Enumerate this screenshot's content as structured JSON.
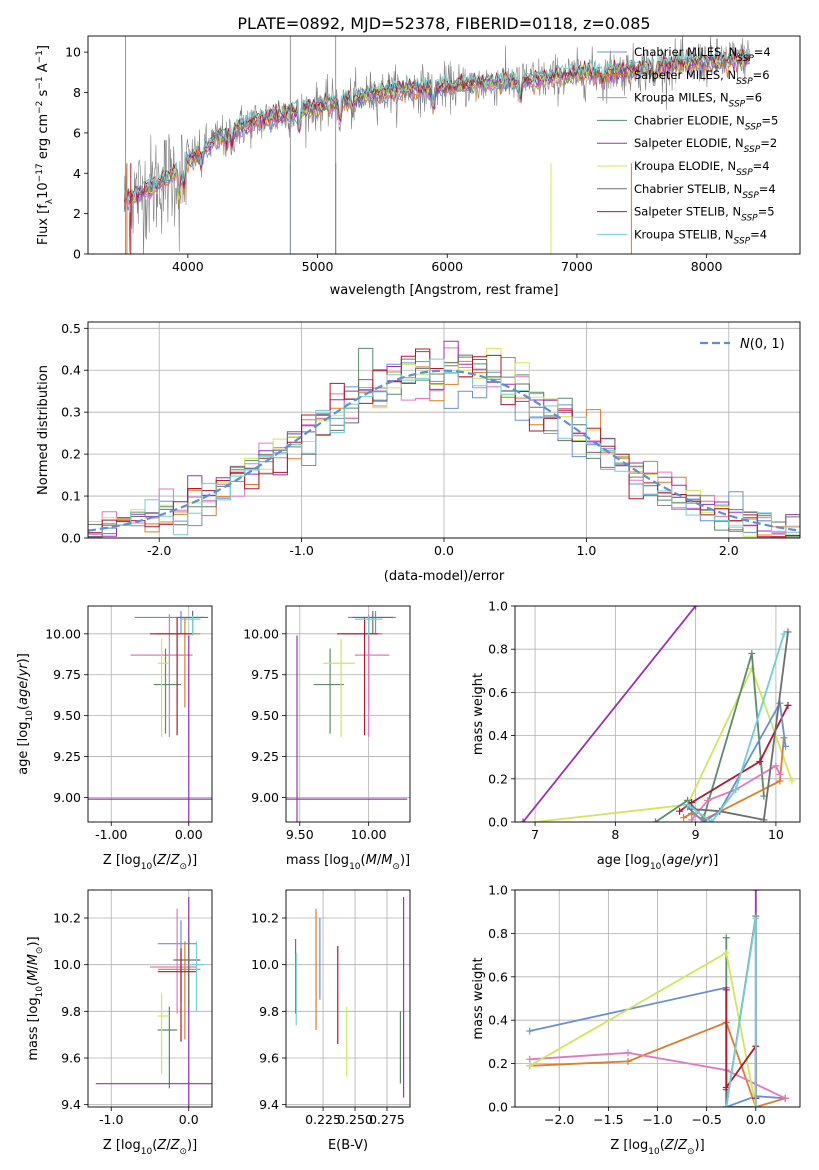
{
  "figure": {
    "title": "PLATE=0892, MJD=52378, FIBERID=0118, z=0.085",
    "colors": {
      "chabrier_miles": "#6b8fd6",
      "salpeter_miles": "#e07b2a",
      "kroupa_miles": "#e377c2",
      "chabrier_elodie": "#5c8a6a",
      "salpeter_elodie": "#9b30b8",
      "kroupa_elodie": "#cde85a",
      "chabrier_stelib": "#6e6e6e",
      "salpeter_stelib": "#b2182b",
      "kroupa_stelib": "#6fd0d6",
      "data": "#808080",
      "gaussian": "#5b8fd6"
    },
    "legend_top_entries": [
      {
        "key": "chabrier_miles",
        "label": "Chabrier MILES, N",
        "sub": "SSP",
        "eq": "=4"
      },
      {
        "key": "salpeter_miles",
        "label": "Salpeter MILES, N",
        "sub": "SSP",
        "eq": "=6"
      },
      {
        "key": "kroupa_miles",
        "label": "Kroupa MILES, N",
        "sub": "SSP",
        "eq": "=6"
      },
      {
        "key": "chabrier_elodie",
        "label": "Chabrier ELODIE, N",
        "sub": "SSP",
        "eq": "=5"
      },
      {
        "key": "salpeter_elodie",
        "label": "Salpeter ELODIE, N",
        "sub": "SSP",
        "eq": "=2"
      },
      {
        "key": "kroupa_elodie",
        "label": "Kroupa ELODIE, N",
        "sub": "SSP",
        "eq": "=4"
      },
      {
        "key": "chabrier_stelib",
        "label": "Chabrier STELIB, N",
        "sub": "SSP",
        "eq": "=4"
      },
      {
        "key": "salpeter_stelib",
        "label": "Salpeter STELIB, N",
        "sub": "SSP",
        "eq": "=5"
      },
      {
        "key": "kroupa_stelib",
        "label": "Kroupa STELIB, N",
        "sub": "SSP",
        "eq": "=4"
      }
    ]
  },
  "chart_data": [
    {
      "id": "spectrum",
      "type": "line",
      "title": "PLATE=0892, MJD=52378, FIBERID=0118, z=0.085",
      "xlabel": "wavelength [Angstrom, rest frame]",
      "ylabel_parts": [
        "Flux [f",
        "λ",
        "10",
        "−17",
        " erg cm",
        "−2",
        " s",
        "−1",
        " A",
        "−1",
        "]"
      ],
      "xlim": [
        3230,
        8720
      ],
      "ylim": [
        0,
        10.8
      ],
      "xticks": [
        4000,
        5000,
        6000,
        7000,
        8000
      ],
      "yticks": [
        0,
        2,
        4,
        6,
        8,
        10
      ],
      "grid": false,
      "legend": "upper right",
      "continuum_x": [
        3500,
        3700,
        3900,
        4000,
        4200,
        4400,
        4600,
        4800,
        5000,
        5200,
        5400,
        5600,
        5800,
        6000,
        6200,
        6400,
        6600,
        6800,
        7000,
        7200,
        7400,
        7600,
        7800,
        8000,
        8200,
        8300
      ],
      "continuum_y": [
        2.6,
        3.2,
        4.0,
        4.6,
        5.6,
        6.3,
        6.7,
        7.0,
        7.3,
        7.6,
        7.9,
        8.1,
        8.2,
        8.3,
        8.4,
        8.5,
        8.6,
        8.7,
        8.9,
        9.0,
        9.1,
        9.3,
        9.4,
        9.5,
        9.6,
        9.7
      ]
    },
    {
      "id": "residuals",
      "type": "histogram",
      "xlabel": "(data-model)/error",
      "ylabel": "Normed distribution",
      "xlim": [
        -2.5,
        2.5
      ],
      "ylim": [
        0,
        0.515
      ],
      "xticks": [
        -2,
        -1,
        0,
        1,
        2
      ],
      "yticks": [
        0.0,
        0.1,
        0.2,
        0.3,
        0.4,
        0.5
      ],
      "grid": true,
      "legend": "upper right",
      "legend_label": "N(0, 1)",
      "bin_width": 0.1
    },
    {
      "id": "age_vs_Z",
      "type": "errorbar",
      "xlabel": "Z [log10(Z/Z⊙)]",
      "ylabel": "age  [log10(age/yr)]",
      "xlim": [
        -1.3,
        0.3
      ],
      "ylim": [
        8.85,
        10.17
      ],
      "xticks": [
        -1,
        0
      ],
      "yticks": [
        9.0,
        9.25,
        9.5,
        9.75,
        10.0
      ],
      "grid": true,
      "points": [
        {
          "key": "chabrier_miles",
          "x": -0.1,
          "xerr": [
            0.6,
            0.3
          ],
          "y": 10.1,
          "yerr": [
            0.1,
            0.04
          ]
        },
        {
          "key": "salpeter_miles",
          "x": -0.05,
          "xerr": [
            0.35,
            0.2
          ],
          "y": 10.0,
          "yerr": [
            0.45,
            0.1
          ]
        },
        {
          "key": "kroupa_miles",
          "x": -0.25,
          "xerr": [
            0.5,
            0.3
          ],
          "y": 9.87,
          "yerr": [
            0.5,
            0.25
          ]
        },
        {
          "key": "chabrier_elodie",
          "x": -0.3,
          "xerr": [
            0.15,
            0.2
          ],
          "y": 9.69,
          "yerr": [
            0.3,
            0.22
          ]
        },
        {
          "key": "salpeter_elodie",
          "x": 0.0,
          "xerr": [
            1.3,
            0.3
          ],
          "y": 8.99,
          "yerr": [
            0.14,
            1.0
          ]
        },
        {
          "key": "kroupa_elodie",
          "x": -0.35,
          "xerr": [
            0.05,
            0.1
          ],
          "y": 9.82,
          "yerr": [
            0.45,
            0.15
          ]
        },
        {
          "key": "chabrier_stelib",
          "x": 0.05,
          "xerr": [
            0.2,
            0.2
          ],
          "y": 10.1,
          "yerr": [
            0.1,
            0.04
          ]
        },
        {
          "key": "salpeter_stelib",
          "x": -0.15,
          "xerr": [
            0.35,
            0.2
          ],
          "y": 10.0,
          "yerr": [
            0.62,
            0.1
          ]
        },
        {
          "key": "kroupa_stelib",
          "x": 0.05,
          "xerr": [
            0.15,
            0.1
          ],
          "y": 10.09,
          "yerr": [
            0.1,
            0.02
          ]
        }
      ]
    },
    {
      "id": "age_vs_mass",
      "type": "errorbar",
      "xlabel": "mass [log10(M/M⊙)]",
      "ylabel": "",
      "xlim": [
        9.4,
        10.3
      ],
      "ylim": [
        8.85,
        10.17
      ],
      "xticks": [
        9.5,
        10.0
      ],
      "yticks": [
        9.0,
        9.25,
        9.5,
        9.75,
        10.0
      ],
      "grid": true,
      "points": [
        {
          "key": "chabrier_miles",
          "x": 10.05,
          "xerr": [
            0.2,
            0.15
          ],
          "y": 10.1,
          "yerr": [
            0.1,
            0.04
          ]
        },
        {
          "key": "salpeter_miles",
          "x": 10.0,
          "xerr": [
            0.2,
            0.1
          ],
          "y": 10.0,
          "yerr": [
            0.45,
            0.1
          ]
        },
        {
          "key": "kroupa_miles",
          "x": 10.0,
          "xerr": [
            0.1,
            0.15
          ],
          "y": 9.87,
          "yerr": [
            0.5,
            0.25
          ]
        },
        {
          "key": "chabrier_elodie",
          "x": 9.72,
          "xerr": [
            0.12,
            0.1
          ],
          "y": 9.69,
          "yerr": [
            0.3,
            0.22
          ]
        },
        {
          "key": "salpeter_elodie",
          "x": 9.48,
          "xerr": [
            0.1,
            0.8
          ],
          "y": 8.99,
          "yerr": [
            0.14,
            1.0
          ]
        },
        {
          "key": "kroupa_elodie",
          "x": 9.8,
          "xerr": [
            0.13,
            0.1
          ],
          "y": 9.82,
          "yerr": [
            0.45,
            0.15
          ]
        },
        {
          "key": "chabrier_stelib",
          "x": 10.03,
          "xerr": [
            0.15,
            0.15
          ],
          "y": 10.1,
          "yerr": [
            0.1,
            0.04
          ]
        },
        {
          "key": "salpeter_stelib",
          "x": 9.97,
          "xerr": [
            0.2,
            0.1
          ],
          "y": 10.0,
          "yerr": [
            0.62,
            0.1
          ]
        },
        {
          "key": "kroupa_stelib",
          "x": 10.0,
          "xerr": [
            0.1,
            0.1
          ],
          "y": 10.09,
          "yerr": [
            0.1,
            0.02
          ]
        }
      ]
    },
    {
      "id": "mass_weight_vs_age",
      "type": "line",
      "xlabel": "age  [log10(age/yr)]",
      "ylabel": "mass weight",
      "xlim": [
        6.75,
        10.3
      ],
      "ylim": [
        0,
        1.0
      ],
      "xticks": [
        7,
        8,
        9,
        10
      ],
      "yticks": [
        0.0,
        0.2,
        0.4,
        0.6,
        0.8,
        1.0
      ],
      "grid": true,
      "series": [
        {
          "key": "salpeter_elodie",
          "x": [
            6.85,
            9.0
          ],
          "y": [
            0.0,
            1.0
          ]
        },
        {
          "key": "kroupa_elodie",
          "x": [
            7.0,
            8.9,
            9.7,
            10.2
          ],
          "y": [
            0.0,
            0.08,
            0.71,
            0.19
          ]
        },
        {
          "key": "chabrier_elodie",
          "x": [
            8.5,
            8.9,
            9.1,
            9.7,
            9.85
          ],
          "y": [
            0.0,
            0.1,
            0.02,
            0.78,
            0.12
          ]
        },
        {
          "key": "salpeter_stelib",
          "x": [
            8.8,
            8.95,
            9.8,
            10.15
          ],
          "y": [
            0.05,
            0.09,
            0.28,
            0.54
          ]
        },
        {
          "key": "salpeter_miles",
          "x": [
            8.85,
            8.95,
            9.1,
            10.05,
            10.1
          ],
          "y": [
            0.02,
            0.04,
            0.01,
            0.19,
            0.39
          ]
        },
        {
          "key": "kroupa_miles",
          "x": [
            8.95,
            9.15,
            9.5,
            10.0,
            10.05
          ],
          "y": [
            0.01,
            0.1,
            0.15,
            0.26,
            0.22
          ]
        },
        {
          "key": "chabrier_miles",
          "x": [
            8.9,
            9.1,
            9.3,
            10.05,
            10.12
          ],
          "y": [
            0.07,
            0.0,
            0.05,
            0.55,
            0.35
          ]
        },
        {
          "key": "chabrier_stelib",
          "x": [
            8.95,
            9.3,
            9.85,
            10.15
          ],
          "y": [
            0.06,
            0.05,
            0.01,
            0.88
          ]
        },
        {
          "key": "kroupa_stelib",
          "x": [
            8.9,
            9.2,
            9.5,
            10.1
          ],
          "y": [
            0.08,
            0.0,
            0.15,
            0.87
          ]
        }
      ]
    },
    {
      "id": "mass_vs_Z",
      "type": "errorbar",
      "xlabel": "Z [log10(Z/Z⊙)]",
      "ylabel": "mass [log10(M/M⊙)]",
      "xlim": [
        -1.3,
        0.3
      ],
      "ylim": [
        9.39,
        10.32
      ],
      "xticks": [
        -1,
        0
      ],
      "yticks": [
        9.4,
        9.6,
        9.8,
        10.0,
        10.2
      ],
      "grid": true,
      "points": [
        {
          "key": "chabrier_miles",
          "x": -0.1,
          "xerr": [
            0.3,
            0.2
          ],
          "y": 10.09,
          "yerr": [
            0.25,
            0.1
          ]
        },
        {
          "key": "salpeter_miles",
          "x": -0.05,
          "xerr": [
            0.35,
            0.2
          ],
          "y": 9.98,
          "yerr": [
            0.3,
            0.12
          ]
        },
        {
          "key": "kroupa_miles",
          "x": -0.15,
          "xerr": [
            0.35,
            0.25
          ],
          "y": 9.99,
          "yerr": [
            0.2,
            0.25
          ]
        },
        {
          "key": "chabrier_elodie",
          "x": -0.25,
          "xerr": [
            0.15,
            0.1
          ],
          "y": 9.72,
          "yerr": [
            0.25,
            0.1
          ]
        },
        {
          "key": "salpeter_elodie",
          "x": 0.0,
          "xerr": [
            1.2,
            0.3
          ],
          "y": 9.49,
          "yerr": [
            0.1,
            0.8
          ]
        },
        {
          "key": "kroupa_elodie",
          "x": -0.35,
          "xerr": [
            0.05,
            0.1
          ],
          "y": 9.78,
          "yerr": [
            0.25,
            0.1
          ]
        },
        {
          "key": "chabrier_stelib",
          "x": 0.0,
          "xerr": [
            0.2,
            0.15
          ],
          "y": 10.02,
          "yerr": [
            0.2,
            0.1
          ]
        },
        {
          "key": "salpeter_stelib",
          "x": -0.1,
          "xerr": [
            0.3,
            0.2
          ],
          "y": 9.97,
          "yerr": [
            0.3,
            0.1
          ]
        },
        {
          "key": "kroupa_stelib",
          "x": 0.1,
          "xerr": [
            0.1,
            0.1
          ],
          "y": 10.0,
          "yerr": [
            0.2,
            0.1
          ]
        }
      ]
    },
    {
      "id": "mass_vs_ebv",
      "type": "errorbar",
      "xlabel": "E(B-V)",
      "ylabel": "",
      "xlim": [
        0.196,
        0.293
      ],
      "ylim": [
        9.39,
        10.32
      ],
      "xticks": [
        0.225,
        0.25,
        0.275
      ],
      "yticks": [
        9.4,
        9.6,
        9.8,
        10.0,
        10.2
      ],
      "grid": true,
      "points": [
        {
          "key": "chabrier_stelib",
          "x": 0.2035,
          "y": 9.99,
          "yerr": [
            0.2,
            0.12
          ]
        },
        {
          "key": "kroupa_stelib",
          "x": 0.204,
          "y": 9.9,
          "yerr": [
            0.16,
            0.15
          ]
        },
        {
          "key": "salpeter_miles",
          "x": 0.2195,
          "y": 9.97,
          "yerr": [
            0.25,
            0.27
          ]
        },
        {
          "key": "chabrier_miles",
          "x": 0.2225,
          "y": 10.02,
          "yerr": [
            0.17,
            0.18
          ]
        },
        {
          "key": "salpeter_stelib",
          "x": 0.2365,
          "y": 9.87,
          "yerr": [
            0.21,
            0.21
          ]
        },
        {
          "key": "kroupa_elodie",
          "x": 0.2435,
          "y": 9.67,
          "yerr": [
            0.15,
            0.15
          ]
        },
        {
          "key": "chabrier_elodie",
          "x": 0.2855,
          "y": 9.64,
          "yerr": [
            0.15,
            0.16
          ]
        },
        {
          "key": "salpeter_elodie",
          "x": 0.288,
          "y": 9.86,
          "yerr": [
            0.43,
            0.43
          ]
        }
      ]
    },
    {
      "id": "mass_weight_vs_Z",
      "type": "line",
      "xlabel": "Z [log10(Z/Z⊙)]",
      "ylabel": "mass weight",
      "xlim": [
        -2.45,
        0.45
      ],
      "ylim": [
        0,
        1.0
      ],
      "xticks": [
        -2.0,
        -1.5,
        -1.0,
        -0.5,
        0.0
      ],
      "yticks": [
        0.0,
        0.2,
        0.4,
        0.6,
        0.8,
        1.0
      ],
      "grid": true,
      "series": [
        {
          "key": "chabrier_miles",
          "x": [
            -2.3,
            -0.3,
            -0.3,
            0.0,
            0.0,
            0.3
          ],
          "y": [
            0.35,
            0.55,
            0.0,
            0.05,
            0.05,
            0.04
          ]
        },
        {
          "key": "salpeter_miles",
          "x": [
            -2.3,
            -1.3,
            -0.3,
            0.0,
            0.3
          ],
          "y": [
            0.19,
            0.21,
            0.39,
            0.0,
            0.04
          ]
        },
        {
          "key": "kroupa_miles",
          "x": [
            -2.3,
            -1.3,
            -0.3,
            0.3
          ],
          "y": [
            0.22,
            0.25,
            0.17,
            0.04
          ]
        },
        {
          "key": "chabrier_elodie",
          "x": [
            -0.3,
            -0.3,
            0.0
          ],
          "y": [
            0.78,
            0.0,
            0.0
          ]
        },
        {
          "key": "salpeter_elodie",
          "x": [
            0.0,
            0.0
          ],
          "y": [
            0.0,
            1.0
          ]
        },
        {
          "key": "kroupa_elodie",
          "x": [
            -2.3,
            -0.3,
            0.0
          ],
          "y": [
            0.19,
            0.71,
            0.0
          ]
        },
        {
          "key": "chabrier_stelib",
          "x": [
            -0.3,
            -0.3,
            0.0,
            0.0
          ],
          "y": [
            0.08,
            0.0,
            0.88,
            0.04
          ]
        },
        {
          "key": "salpeter_stelib",
          "x": [
            -0.3,
            -0.3,
            0.0,
            0.0
          ],
          "y": [
            0.54,
            0.09,
            0.28,
            0.04
          ]
        },
        {
          "key": "kroupa_stelib",
          "x": [
            -0.3,
            0.0,
            0.0
          ],
          "y": [
            0.0,
            0.87,
            0.0
          ]
        }
      ]
    }
  ]
}
